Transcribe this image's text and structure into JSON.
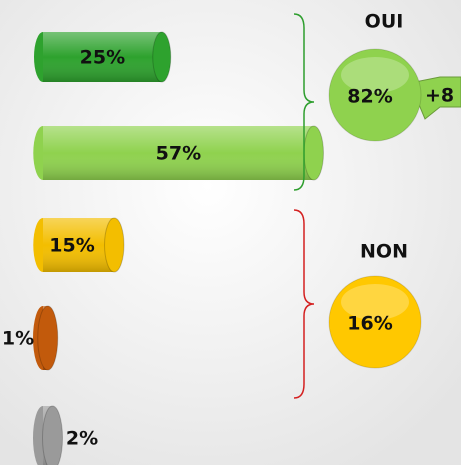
{
  "chart_data": {
    "type": "bar",
    "orientation": "horizontal",
    "values": [
      25,
      57,
      15,
      1,
      2
    ],
    "value_labels": [
      "25%",
      "57%",
      "15%",
      "1%",
      "2%"
    ],
    "colors": [
      "#2ea22e",
      "#8fd24e",
      "#f3be00",
      "#c25a0c",
      "#9a9a9a"
    ],
    "groups": [
      {
        "label": "OUI",
        "value": 82,
        "value_label": "82%",
        "change": "+8",
        "color": "#8fd24e",
        "brace_color": "#2e9e2e"
      },
      {
        "label": "NON",
        "value": 16,
        "value_label": "16%",
        "color": "#ffc800",
        "brace_color": "#d42020"
      }
    ]
  }
}
